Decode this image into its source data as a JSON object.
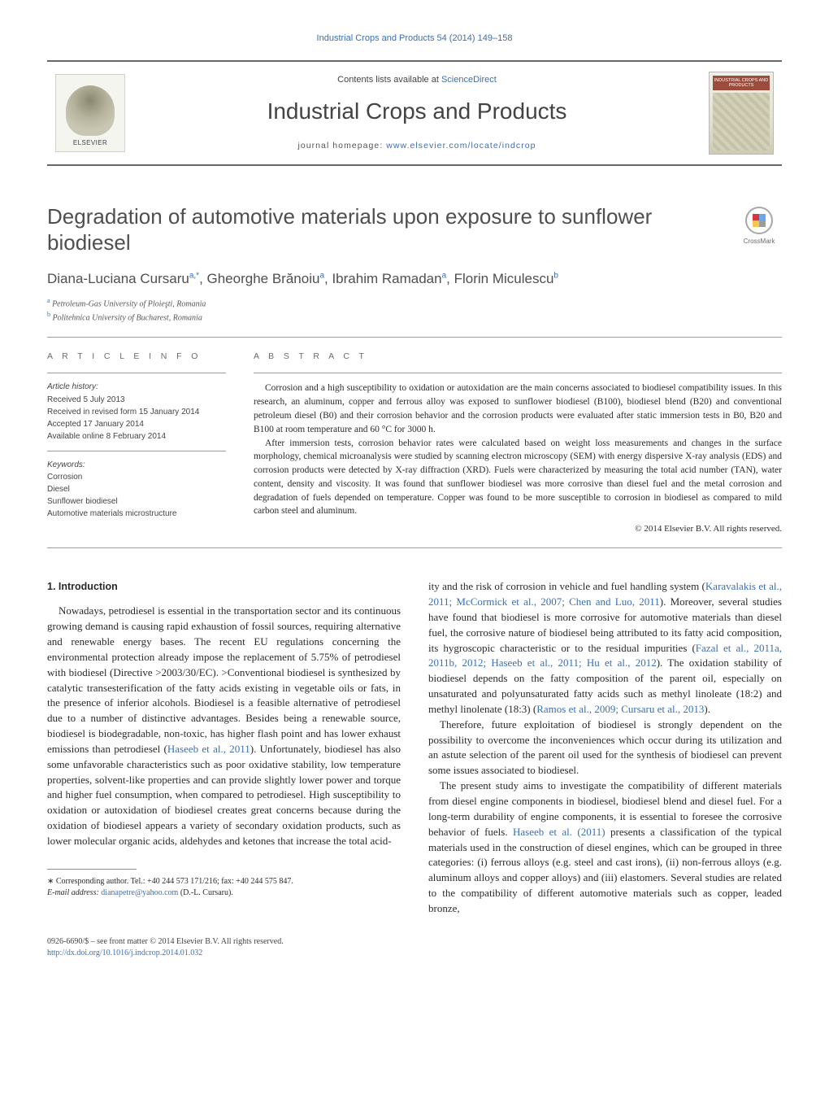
{
  "journal_ref": "Industrial Crops and Products 54 (2014) 149–158",
  "header": {
    "contents_prefix": "Contents lists available at ",
    "contents_link": "ScienceDirect",
    "journal_title": "Industrial Crops and Products",
    "homepage_prefix": "journal homepage: ",
    "homepage_link": "www.elsevier.com/locate/indcrop",
    "elsevier_label": "ELSEVIER",
    "cover_label": "INDUSTRIAL CROPS AND PRODUCTS"
  },
  "crossmark_label": "CrossMark",
  "article_title": "Degradation of automotive materials upon exposure to sunflower biodiesel",
  "authors_html": "Diana-Luciana Cursaru<sup>a,*</sup>, Gheorghe Brănoiu<sup>a</sup>, Ibrahim Ramadan<sup>a</sup>, Florin Miculescu<sup>b</sup>",
  "affiliations": [
    {
      "sup": "a",
      "text": "Petroleum-Gas University of Ploieşti, Romania"
    },
    {
      "sup": "b",
      "text": "Politehnica University of Bucharest, Romania"
    }
  ],
  "info": {
    "heading": "A R T I C L E   I N F O",
    "history_title": "Article history:",
    "history_lines": [
      "Received 5 July 2013",
      "Received in revised form 15 January 2014",
      "Accepted 17 January 2014",
      "Available online 8 February 2014"
    ],
    "keywords_title": "Keywords:",
    "keywords": [
      "Corrosion",
      "Diesel",
      "Sunflower biodiesel",
      "Automotive materials microstructure"
    ]
  },
  "abstract": {
    "heading": "A B S T R A C T",
    "paras": [
      "Corrosion and a high susceptibility to oxidation or autoxidation are the main concerns associated to biodiesel compatibility issues. In this research, an aluminum, copper and ferrous alloy was exposed to sunflower biodiesel (B100), biodiesel blend (B20) and conventional petroleum diesel (B0) and their corrosion behavior and the corrosion products were evaluated after static immersion tests in B0, B20 and B100 at room temperature and 60 °C for 3000 h.",
      "After immersion tests, corrosion behavior rates were calculated based on weight loss measurements and changes in the surface morphology, chemical microanalysis were studied by scanning electron microscopy (SEM) with energy dispersive X-ray analysis (EDS) and corrosion products were detected by X-ray diffraction (XRD). Fuels were characterized by measuring the total acid number (TAN), water content, density and viscosity. It was found that sunflower biodiesel was more corrosive than diesel fuel and the metal corrosion and degradation of fuels depended on temperature. Copper was found to be more susceptible to corrosion in biodiesel as compared to mild carbon steel and aluminum."
    ],
    "copyright": "© 2014 Elsevier B.V. All rights reserved."
  },
  "section1": {
    "heading": "1.  Introduction",
    "p1_a": "Nowadays, petrodiesel is essential in the transportation sector and its continuous growing demand is causing rapid exhaustion of fossil sources, requiring alternative and renewable energy bases. The recent EU regulations concerning the environmental protection already impose the replacement of 5.75% of petrodiesel with biodiesel (Directive >2003/30/EC). >Conventional biodiesel is synthesized by catalytic transesterification of the fatty acids existing in vegetable oils or fats, in the presence of inferior alcohols. Biodiesel is a feasible alternative of petrodiesel due to a number of distinctive advantages. Besides being a renewable source, biodiesel is biodegradable, non-toxic, has higher flash point and has lower exhaust emissions than petrodiesel (",
    "p1_link1": "Haseeb et al., 2011",
    "p1_b": "). Unfortunately, biodiesel has also some unfavorable characteristics such as poor oxidative stability, low temperature properties, solvent-like properties and can provide slightly lower power and torque and higher fuel consumption, when compared to petrodiesel. High susceptibility to oxidation or autoxidation of biodiesel creates great concerns because during the oxidation of biodiesel appears a variety of secondary oxidation products, such as lower molecular organic acids, aldehydes and ketones that increase the total acid-",
    "p2_a": "ity and the risk of corrosion in vehicle and fuel handling system (",
    "p2_link1": "Karavalakis et al., 2011; McCormick et al., 2007; Chen and Luo, 2011",
    "p2_b": "). Moreover, several studies have found that biodiesel is more corrosive for automotive materials than diesel fuel, the corrosive nature of biodiesel being attributed to its fatty acid composition, its hygroscopic characteristic or to the residual impurities (",
    "p2_link2": "Fazal et al., 2011a, 2011b, 2012; Haseeb et al., 2011; Hu et al., 2012",
    "p2_c": "). The oxidation stability of biodiesel depends on the fatty composition of the parent oil, especially on unsaturated and polyunsaturated fatty acids such as methyl linoleate (18:2) and methyl linolenate (18:3) (",
    "p2_link3": "Ramos et al., 2009; Cursaru et al., 2013",
    "p2_d": ").",
    "p3": "Therefore, future exploitation of biodiesel is strongly dependent on the possibility to overcome the inconveniences which occur during its utilization and an astute selection of the parent oil used for the synthesis of biodiesel can prevent some issues associated to biodiesel.",
    "p4_a": "The present study aims to investigate the compatibility of different materials from diesel engine components in biodiesel, biodiesel blend and diesel fuel. For a long-term durability of engine components, it is essential to foresee the corrosive behavior of fuels. ",
    "p4_link1": "Haseeb et al. (2011)",
    "p4_b": " presents a classification of the typical materials used in the construction of diesel engines, which can be grouped in three categories: (i) ferrous alloys (e.g. steel and cast irons), (ii) non-ferrous alloys (e.g. aluminum alloys and copper alloys) and (iii) elastomers. Several studies are related to the compatibility of different automotive materials such as copper, leaded bronze,"
  },
  "footnote": {
    "star": "∗",
    "text": "Corresponding author. Tel.: +40 244 573 171/216; fax: +40 244 575 847.",
    "email_label": "E-mail address: ",
    "email": "dianapetre@yahoo.com",
    "email_suffix": " (D.-L. Cursaru)."
  },
  "footer": {
    "left_line1": "0926-6690/$ – see front matter © 2014 Elsevier B.V. All rights reserved.",
    "doi": "http://dx.doi.org/10.1016/j.indcrop.2014.01.032"
  },
  "colors": {
    "link": "#3b6fb5",
    "rule": "#9c9c9c",
    "heading_gray": "#4f4f4f"
  }
}
